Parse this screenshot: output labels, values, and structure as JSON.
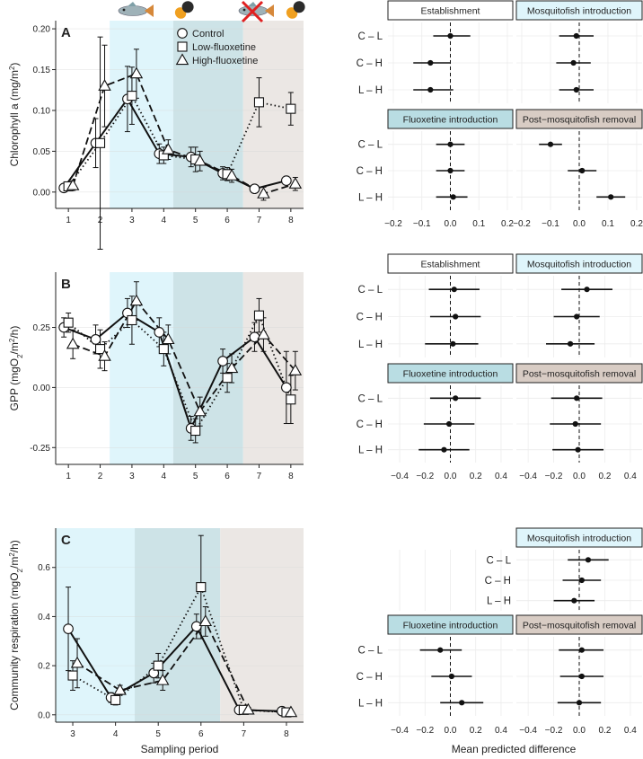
{
  "figure": {
    "x_title": "Sampling period",
    "forest_x_title": "Mean predicted difference"
  },
  "legend": [
    {
      "name": "Control",
      "marker": "circle",
      "dash": "solid"
    },
    {
      "name": "Low-fluoxetine",
      "marker": "square",
      "dash": "dotted"
    },
    {
      "name": "High-fluoxetine",
      "marker": "triangle",
      "dash": "dashed"
    }
  ],
  "icons": [
    "mosquitofish-icon",
    "capsule-icon",
    "mosquitofish-removed-icon",
    "capsule-icon"
  ],
  "colors": {
    "establishment": "#ffffff",
    "mosquitofish": "#dff5fb",
    "fluoxetine": "#cde3e7",
    "removal": "#ebe7e4",
    "strip_mosquito": "#dff5fb",
    "strip_fluox": "#b9dde3",
    "strip_removal": "#d8ccc4",
    "grid": "#ececec",
    "line": "#111111"
  },
  "chart_data": [
    {
      "type": "line",
      "panel": "A",
      "title": "",
      "xlabel": "",
      "ylabel": "Chlorophyll a (mg/m²)",
      "ylabel_parts": [
        "Chlorophyll a (mg/m",
        "2",
        ")"
      ],
      "xlim": [
        0.6,
        8.4
      ],
      "ylim": [
        -0.02,
        0.21
      ],
      "xticks": [
        1,
        2,
        3,
        4,
        5,
        6,
        7,
        8
      ],
      "yticks": [
        0.0,
        0.05,
        0.1,
        0.15,
        0.2
      ],
      "ytick_labels": [
        "0.00",
        "0.05",
        "0.10",
        "0.15",
        "0.20"
      ],
      "shading": [
        {
          "phase": "mosquitofish",
          "from": 2.3,
          "to": 4.3
        },
        {
          "phase": "fluoxetine",
          "from": 4.3,
          "to": 6.5
        },
        {
          "phase": "removal",
          "from": 6.5,
          "to": 8.4
        }
      ],
      "series": [
        {
          "name": "Control",
          "x": [
            1,
            2,
            3,
            4,
            5,
            6,
            7,
            8
          ],
          "values": [
            0.005,
            0.06,
            0.114,
            0.047,
            0.043,
            0.023,
            0.004,
            0.014
          ],
          "err": [
            0.004,
            0.03,
            0.04,
            0.012,
            0.012,
            0.008,
            0.004,
            0.004
          ]
        },
        {
          "name": "Low-fluoxetine",
          "x": [
            1,
            2,
            3,
            4,
            5,
            6,
            7,
            8
          ],
          "values": [
            0.007,
            0.06,
            0.118,
            0.045,
            0.04,
            0.022,
            0.11,
            0.102
          ],
          "err": [
            0.005,
            0.13,
            0.035,
            0.01,
            0.015,
            0.008,
            0.03,
            0.02
          ]
        },
        {
          "name": "High-fluoxetine",
          "x": [
            1,
            2,
            3,
            4,
            5,
            6,
            7,
            8
          ],
          "values": [
            0.008,
            0.13,
            0.145,
            0.052,
            0.038,
            0.02,
            -0.002,
            0.01
          ],
          "err": [
            0.006,
            0.05,
            0.03,
            0.012,
            0.012,
            0.008,
            0.008,
            0.008
          ]
        }
      ]
    },
    {
      "type": "line",
      "panel": "B",
      "title": "",
      "xlabel": "",
      "ylabel": "GPP (mgO₂/m²/h)",
      "ylabel_parts": [
        "GPP (mgO",
        "2",
        "/m",
        "2",
        "/h)"
      ],
      "xlim": [
        0.6,
        8.4
      ],
      "ylim": [
        -0.32,
        0.48
      ],
      "xticks": [
        1,
        2,
        3,
        4,
        5,
        6,
        7,
        8
      ],
      "yticks": [
        -0.25,
        0.0,
        0.25
      ],
      "ytick_labels": [
        "-0.25",
        "0.00",
        "0.25"
      ],
      "shading": [
        {
          "phase": "mosquitofish",
          "from": 2.3,
          "to": 4.3
        },
        {
          "phase": "fluoxetine",
          "from": 4.3,
          "to": 6.5
        },
        {
          "phase": "removal",
          "from": 6.5,
          "to": 8.4
        }
      ],
      "series": [
        {
          "name": "Control",
          "x": [
            1,
            2,
            3,
            4,
            5,
            6,
            7,
            8
          ],
          "values": [
            0.25,
            0.2,
            0.31,
            0.23,
            -0.17,
            0.11,
            0.21,
            0.0
          ],
          "err": [
            0.04,
            0.06,
            0.06,
            0.06,
            0.05,
            0.05,
            0.06,
            0.15
          ]
        },
        {
          "name": "Low-fluoxetine",
          "x": [
            1,
            2,
            3,
            4,
            5,
            6,
            7,
            8
          ],
          "values": [
            0.27,
            0.16,
            0.28,
            0.16,
            -0.18,
            0.04,
            0.3,
            -0.05
          ],
          "err": [
            0.04,
            0.08,
            0.1,
            0.07,
            0.05,
            0.06,
            0.07,
            0.1
          ]
        },
        {
          "name": "High-fluoxetine",
          "x": [
            1,
            2,
            3,
            4,
            5,
            6,
            7,
            8
          ],
          "values": [
            0.18,
            0.13,
            0.36,
            0.2,
            -0.1,
            0.08,
            0.22,
            0.07
          ],
          "err": [
            0.06,
            0.06,
            0.08,
            0.06,
            0.06,
            0.06,
            0.07,
            0.08
          ]
        }
      ]
    },
    {
      "type": "line",
      "panel": "C",
      "title": "",
      "xlabel": "Sampling period",
      "ylabel": "Community respiration (mgO₂/m²/h)",
      "ylabel_parts": [
        "Community respiration (mgO",
        "2",
        "/m",
        "2",
        "/h)"
      ],
      "xlim": [
        2.6,
        8.4
      ],
      "ylim": [
        -0.03,
        0.76
      ],
      "xticks": [
        3,
        4,
        5,
        6,
        7,
        8
      ],
      "yticks": [
        0.0,
        0.2,
        0.4,
        0.6
      ],
      "ytick_labels": [
        "0.0",
        "0.2",
        "0.4",
        "0.6"
      ],
      "shading": [
        {
          "phase": "mosquitofish",
          "from": 2.6,
          "to": 4.45
        },
        {
          "phase": "fluoxetine",
          "from": 4.45,
          "to": 6.45
        },
        {
          "phase": "removal",
          "from": 6.45,
          "to": 8.4
        }
      ],
      "series": [
        {
          "name": "Control",
          "x": [
            3,
            4,
            5,
            6,
            7,
            8
          ],
          "values": [
            0.35,
            0.07,
            0.17,
            0.36,
            0.02,
            0.015
          ],
          "err": [
            0.17,
            0.02,
            0.04,
            0.05,
            0.01,
            0.005
          ]
        },
        {
          "name": "Low-fluoxetine",
          "x": [
            3,
            4,
            5,
            6,
            7,
            8
          ],
          "values": [
            0.16,
            0.06,
            0.2,
            0.52,
            0.02,
            0.01
          ],
          "err": [
            0.06,
            0.02,
            0.05,
            0.21,
            0.01,
            0.005
          ]
        },
        {
          "name": "High-fluoxetine",
          "x": [
            3,
            4,
            5,
            6,
            7,
            8
          ],
          "values": [
            0.21,
            0.1,
            0.14,
            0.38,
            0.02,
            0.01
          ],
          "err": [
            0.1,
            0.02,
            0.04,
            0.06,
            0.01,
            0.005
          ]
        }
      ]
    },
    {
      "type": "forest",
      "panel": "A-right",
      "xlim": [
        -0.2,
        0.2
      ],
      "xticks": [
        -0.2,
        -0.1,
        0.0,
        0.1,
        0.2
      ],
      "tick_labels": [
        "−0.2",
        "−0.1",
        "0.0",
        "0.1",
        "0.2"
      ],
      "comparisons": [
        "C – L",
        "C – H",
        "L – H"
      ],
      "facets": [
        {
          "title": "Establishment",
          "strip": "white",
          "means": [
            0.0,
            -0.07,
            -0.07
          ],
          "lo": [
            -0.06,
            -0.13,
            -0.13
          ],
          "hi": [
            0.07,
            0.0,
            0.01
          ]
        },
        {
          "title": "Mosquitofish introduction",
          "strip": "mosquito",
          "means": [
            -0.01,
            -0.02,
            -0.01
          ],
          "lo": [
            -0.07,
            -0.08,
            -0.07
          ],
          "hi": [
            0.05,
            0.04,
            0.05
          ]
        },
        {
          "title": "Fluoxetine introduction",
          "strip": "fluox",
          "means": [
            0.0,
            0.0,
            0.01
          ],
          "lo": [
            -0.05,
            -0.05,
            -0.05
          ],
          "hi": [
            0.05,
            0.05,
            0.06
          ]
        },
        {
          "title": "Post−mosquitofish removal",
          "strip": "removal",
          "means": [
            -0.1,
            0.01,
            0.11
          ],
          "lo": [
            -0.14,
            -0.04,
            0.06
          ],
          "hi": [
            -0.06,
            0.06,
            0.16
          ]
        }
      ]
    },
    {
      "type": "forest",
      "panel": "B-right",
      "xlim": [
        -0.45,
        0.45
      ],
      "xticks": [
        -0.4,
        -0.2,
        0.0,
        0.2,
        0.4
      ],
      "tick_labels": [
        "−0.4",
        "−0.2",
        "0.0",
        "0.2",
        "0.4"
      ],
      "comparisons": [
        "C – L",
        "C – H",
        "L – H"
      ],
      "facets": [
        {
          "title": "Establishment",
          "strip": "white",
          "means": [
            0.03,
            0.04,
            0.02
          ],
          "lo": [
            -0.17,
            -0.16,
            -0.2
          ],
          "hi": [
            0.23,
            0.24,
            0.22
          ]
        },
        {
          "title": "Mosquitofish introduction",
          "strip": "mosquito",
          "means": [
            0.06,
            -0.02,
            -0.07
          ],
          "lo": [
            -0.14,
            -0.2,
            -0.26
          ],
          "hi": [
            0.26,
            0.16,
            0.12
          ]
        },
        {
          "title": "Fluoxetine introduction",
          "strip": "fluox",
          "means": [
            0.04,
            -0.01,
            -0.05
          ],
          "lo": [
            -0.16,
            -0.21,
            -0.25
          ],
          "hi": [
            0.24,
            0.19,
            0.15
          ]
        },
        {
          "title": "Post−mosquitofish removal",
          "strip": "removal",
          "means": [
            -0.02,
            -0.03,
            -0.01
          ],
          "lo": [
            -0.22,
            -0.23,
            -0.21
          ],
          "hi": [
            0.18,
            0.17,
            0.19
          ]
        }
      ]
    },
    {
      "type": "forest",
      "panel": "C-right",
      "xlim": [
        -0.45,
        0.45
      ],
      "xticks": [
        -0.4,
        -0.2,
        0.0,
        0.2,
        0.4
      ],
      "tick_labels": [
        "−0.4",
        "−0.2",
        "0.0",
        "0.2",
        "0.4"
      ],
      "comparisons": [
        "C – L",
        "C – H",
        "L – H"
      ],
      "facets": [
        {
          "title": "",
          "strip": "none",
          "means": [],
          "lo": [],
          "hi": []
        },
        {
          "title": "Mosquitofish introduction",
          "strip": "mosquito",
          "means": [
            0.07,
            0.02,
            -0.04
          ],
          "lo": [
            -0.09,
            -0.13,
            -0.2
          ],
          "hi": [
            0.23,
            0.17,
            0.12
          ]
        },
        {
          "title": "Fluoxetine introduction",
          "strip": "fluox",
          "means": [
            -0.08,
            0.01,
            0.09
          ],
          "lo": [
            -0.24,
            -0.15,
            -0.08
          ],
          "hi": [
            0.09,
            0.17,
            0.26
          ]
        },
        {
          "title": "Post−mosquitofish removal",
          "strip": "removal",
          "means": [
            0.02,
            0.02,
            0.0
          ],
          "lo": [
            -0.16,
            -0.15,
            -0.17
          ],
          "hi": [
            0.19,
            0.19,
            0.17
          ]
        }
      ]
    }
  ]
}
